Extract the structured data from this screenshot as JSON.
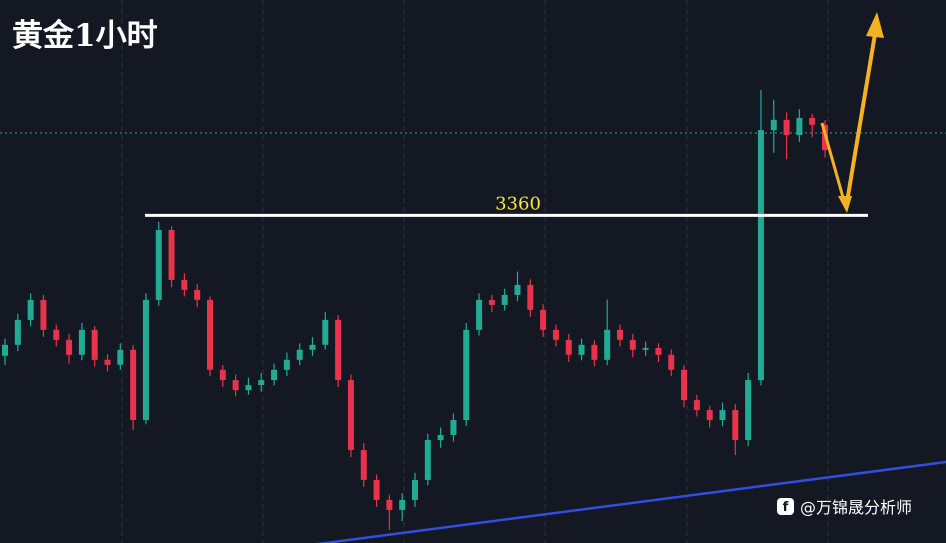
{
  "chart_data": {
    "type": "candlestick",
    "title": "黄金1小时",
    "source": "@万锦晟分析师",
    "ylim": [
      3255,
      3429
    ],
    "level": {
      "value": 3360,
      "label": "3360"
    },
    "up_color": "#22ab94",
    "down_color": "#e8334a",
    "ohlc": [
      [
        3315.0,
        3320.5,
        3312.0,
        3318.5
      ],
      [
        3318.5,
        3328.5,
        3316.5,
        3326.5
      ],
      [
        3326.5,
        3335.0,
        3324.5,
        3332.9
      ],
      [
        3332.9,
        3334.5,
        3321.0,
        3323.3
      ],
      [
        3323.3,
        3325.0,
        3318.0,
        3320.1
      ],
      [
        3320.1,
        3322.0,
        3312.5,
        3315.3
      ],
      [
        3315.3,
        3325.5,
        3313.5,
        3323.3
      ],
      [
        3323.3,
        3324.5,
        3311.5,
        3313.7
      ],
      [
        3313.7,
        3315.5,
        3310.0,
        3312.1
      ],
      [
        3312.1,
        3319.0,
        3310.5,
        3316.9
      ],
      [
        3316.9,
        3318.5,
        3291.2,
        3294.4
      ],
      [
        3294.4,
        3335.0,
        3293.0,
        3332.9
      ],
      [
        3332.9,
        3357.9,
        3331.0,
        3355.3
      ],
      [
        3355.3,
        3356.5,
        3337.0,
        3339.3
      ],
      [
        3339.3,
        3341.5,
        3334.0,
        3336.1
      ],
      [
        3336.1,
        3338.0,
        3330.5,
        3332.9
      ],
      [
        3332.9,
        3334.0,
        3308.5,
        3310.5
      ],
      [
        3310.5,
        3312.0,
        3305.0,
        3307.2
      ],
      [
        3307.2,
        3309.0,
        3302.0,
        3304.0
      ],
      [
        3304.0,
        3308.0,
        3302.5,
        3305.6
      ],
      [
        3305.6,
        3309.5,
        3303.5,
        3307.2
      ],
      [
        3307.2,
        3312.5,
        3305.5,
        3310.5
      ],
      [
        3310.5,
        3316.0,
        3308.5,
        3313.7
      ],
      [
        3313.7,
        3319.0,
        3312.0,
        3316.9
      ],
      [
        3316.9,
        3321.0,
        3315.0,
        3318.5
      ],
      [
        3318.5,
        3329.0,
        3317.0,
        3326.5
      ],
      [
        3326.5,
        3328.0,
        3305.0,
        3307.2
      ],
      [
        3307.2,
        3309.0,
        3282.5,
        3284.8
      ],
      [
        3284.8,
        3287.0,
        3273.0,
        3275.2
      ],
      [
        3275.2,
        3277.0,
        3266.5,
        3268.8
      ],
      [
        3268.8,
        3270.5,
        3259.2,
        3265.6
      ],
      [
        3265.6,
        3271.0,
        3262.0,
        3268.8
      ],
      [
        3268.8,
        3277.5,
        3266.5,
        3275.2
      ],
      [
        3275.2,
        3290.0,
        3273.5,
        3288.0
      ],
      [
        3288.0,
        3292.0,
        3285.5,
        3289.6
      ],
      [
        3289.6,
        3296.5,
        3287.5,
        3294.4
      ],
      [
        3294.4,
        3325.5,
        3292.5,
        3323.3
      ],
      [
        3323.3,
        3335.0,
        3321.5,
        3332.9
      ],
      [
        3332.9,
        3334.5,
        3329.0,
        3331.3
      ],
      [
        3331.3,
        3336.5,
        3329.5,
        3334.5
      ],
      [
        3334.5,
        3342.0,
        3332.5,
        3337.7
      ],
      [
        3337.7,
        3339.5,
        3327.5,
        3329.7
      ],
      [
        3329.7,
        3331.5,
        3321.0,
        3323.3
      ],
      [
        3323.3,
        3325.0,
        3318.0,
        3320.1
      ],
      [
        3320.1,
        3322.0,
        3313.0,
        3315.3
      ],
      [
        3315.3,
        3320.5,
        3313.5,
        3318.5
      ],
      [
        3318.5,
        3320.0,
        3311.5,
        3313.7
      ],
      [
        3313.7,
        3333.0,
        3312.0,
        3323.3
      ],
      [
        3323.3,
        3325.0,
        3318.0,
        3320.1
      ],
      [
        3320.1,
        3322.0,
        3314.5,
        3316.9
      ],
      [
        3316.9,
        3319.5,
        3315.0,
        3317.5
      ],
      [
        3317.5,
        3319.0,
        3313.0,
        3315.3
      ],
      [
        3315.3,
        3317.0,
        3308.5,
        3310.5
      ],
      [
        3310.5,
        3312.0,
        3298.5,
        3300.8
      ],
      [
        3300.8,
        3302.5,
        3295.5,
        3297.6
      ],
      [
        3297.6,
        3299.0,
        3292.0,
        3294.4
      ],
      [
        3294.4,
        3300.0,
        3292.5,
        3297.6
      ],
      [
        3297.6,
        3299.5,
        3283.2,
        3288.0
      ],
      [
        3288.0,
        3309.5,
        3286.0,
        3307.2
      ],
      [
        3307.2,
        3400.2,
        3305.5,
        3387.3
      ],
      [
        3387.3,
        3397.0,
        3380.0,
        3390.6
      ],
      [
        3390.6,
        3393.0,
        3378.0,
        3385.7
      ],
      [
        3385.7,
        3394.0,
        3383.5,
        3391.2
      ],
      [
        3391.2,
        3392.5,
        3385.0,
        3389.0
      ],
      [
        3389.0,
        3390.5,
        3378.5,
        3380.9
      ]
    ]
  }
}
